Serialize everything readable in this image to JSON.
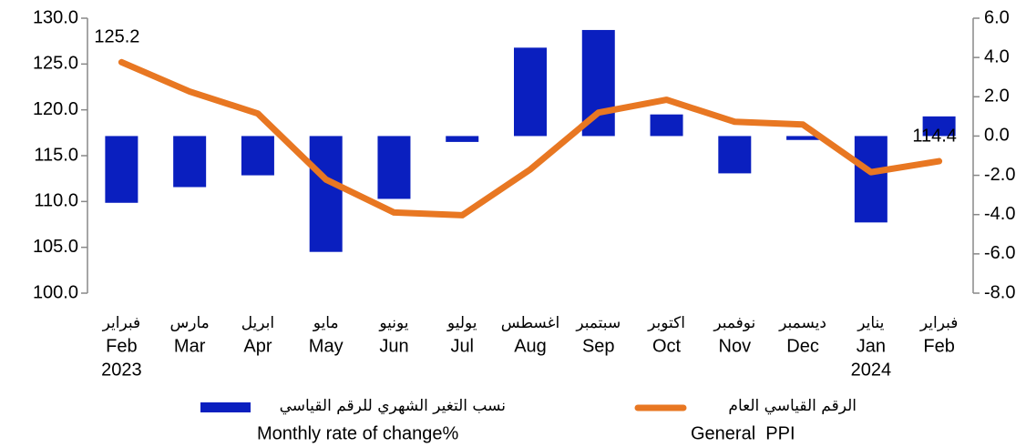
{
  "chart_data": {
    "type": "bar_line",
    "categories": [
      "Feb",
      "Mar",
      "Apr",
      "May",
      "Jun",
      "Jul",
      "Aug",
      "Sep",
      "Oct",
      "Nov",
      "Dec",
      "Jan",
      "Feb"
    ],
    "categories_ar": [
      "فبراير",
      "مارس",
      "ابريل",
      "مايو",
      "يونيو",
      "يوليو",
      "اغسطس",
      "سبتمبر",
      "اكتوبر",
      "نوفمبر",
      "ديسمبر",
      "يناير",
      "فبراير"
    ],
    "years": [
      "2023",
      null,
      null,
      null,
      null,
      null,
      null,
      null,
      null,
      null,
      null,
      "2024",
      null
    ],
    "series": [
      {
        "name": "Monthly rate of change%",
        "name_ar": "نسب التغير الشهري للرقم القياسي",
        "type": "bar",
        "axis": "y2",
        "color": "#0a1fbf",
        "values": [
          -3.4,
          -2.6,
          -2.0,
          -5.9,
          -3.2,
          -0.3,
          4.5,
          5.4,
          1.1,
          -1.9,
          -0.2,
          -4.4,
          1.0
        ]
      },
      {
        "name": "General  PPI",
        "name_ar": "الرقم القياسي العام",
        "type": "line",
        "color": "#e87722",
        "values": [
          125.2,
          122.0,
          119.6,
          112.4,
          108.8,
          108.5,
          113.5,
          119.7,
          121.1,
          118.7,
          118.4,
          113.2,
          114.4
        ],
        "value_labels": [
          "125.2",
          null,
          null,
          null,
          null,
          null,
          null,
          null,
          null,
          null,
          null,
          null,
          "114.4"
        ]
      }
    ],
    "ylim": [
      100,
      130
    ],
    "yticks": [
      {
        "value": 100,
        "label": "100.0"
      },
      {
        "value": 105,
        "label": "105.0"
      },
      {
        "value": 110,
        "label": "110.0"
      },
      {
        "value": 115,
        "label": "115.0"
      },
      {
        "value": 120,
        "label": "120.0"
      },
      {
        "value": 125,
        "label": "125.0"
      },
      {
        "value": 130,
        "label": "130.0"
      }
    ],
    "y2lim": [
      -8,
      6
    ],
    "y2ticks": [
      {
        "value": -8,
        "label": "-8.0"
      },
      {
        "value": -6,
        "label": "-6.0"
      },
      {
        "value": -4,
        "label": "-4.0"
      },
      {
        "value": -2,
        "label": "-2.0"
      },
      {
        "value": 0,
        "label": "0.0"
      },
      {
        "value": 2,
        "label": "2.0"
      },
      {
        "value": 4,
        "label": "4.0"
      },
      {
        "value": 6,
        "label": "6.0"
      }
    ],
    "grid": false
  }
}
